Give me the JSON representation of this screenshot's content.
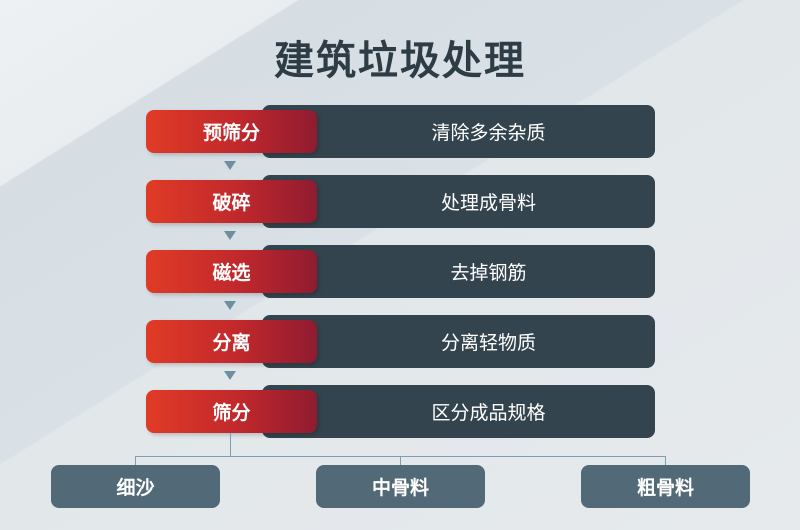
{
  "title": "建筑垃圾处理",
  "steps": [
    {
      "label": "预筛分",
      "description": "清除多余杂质"
    },
    {
      "label": "破碎",
      "description": "处理成骨料"
    },
    {
      "label": "磁选",
      "description": "去掉钢筋"
    },
    {
      "label": "分离",
      "description": "分离轻物质"
    },
    {
      "label": "筛分",
      "description": "区分成品规格"
    }
  ],
  "outputs": [
    "细沙",
    "中骨料",
    "粗骨料"
  ],
  "colors": {
    "step": "#d0302a",
    "description": "#34444e",
    "output": "#526a77",
    "connector": "#7f9fb0"
  }
}
